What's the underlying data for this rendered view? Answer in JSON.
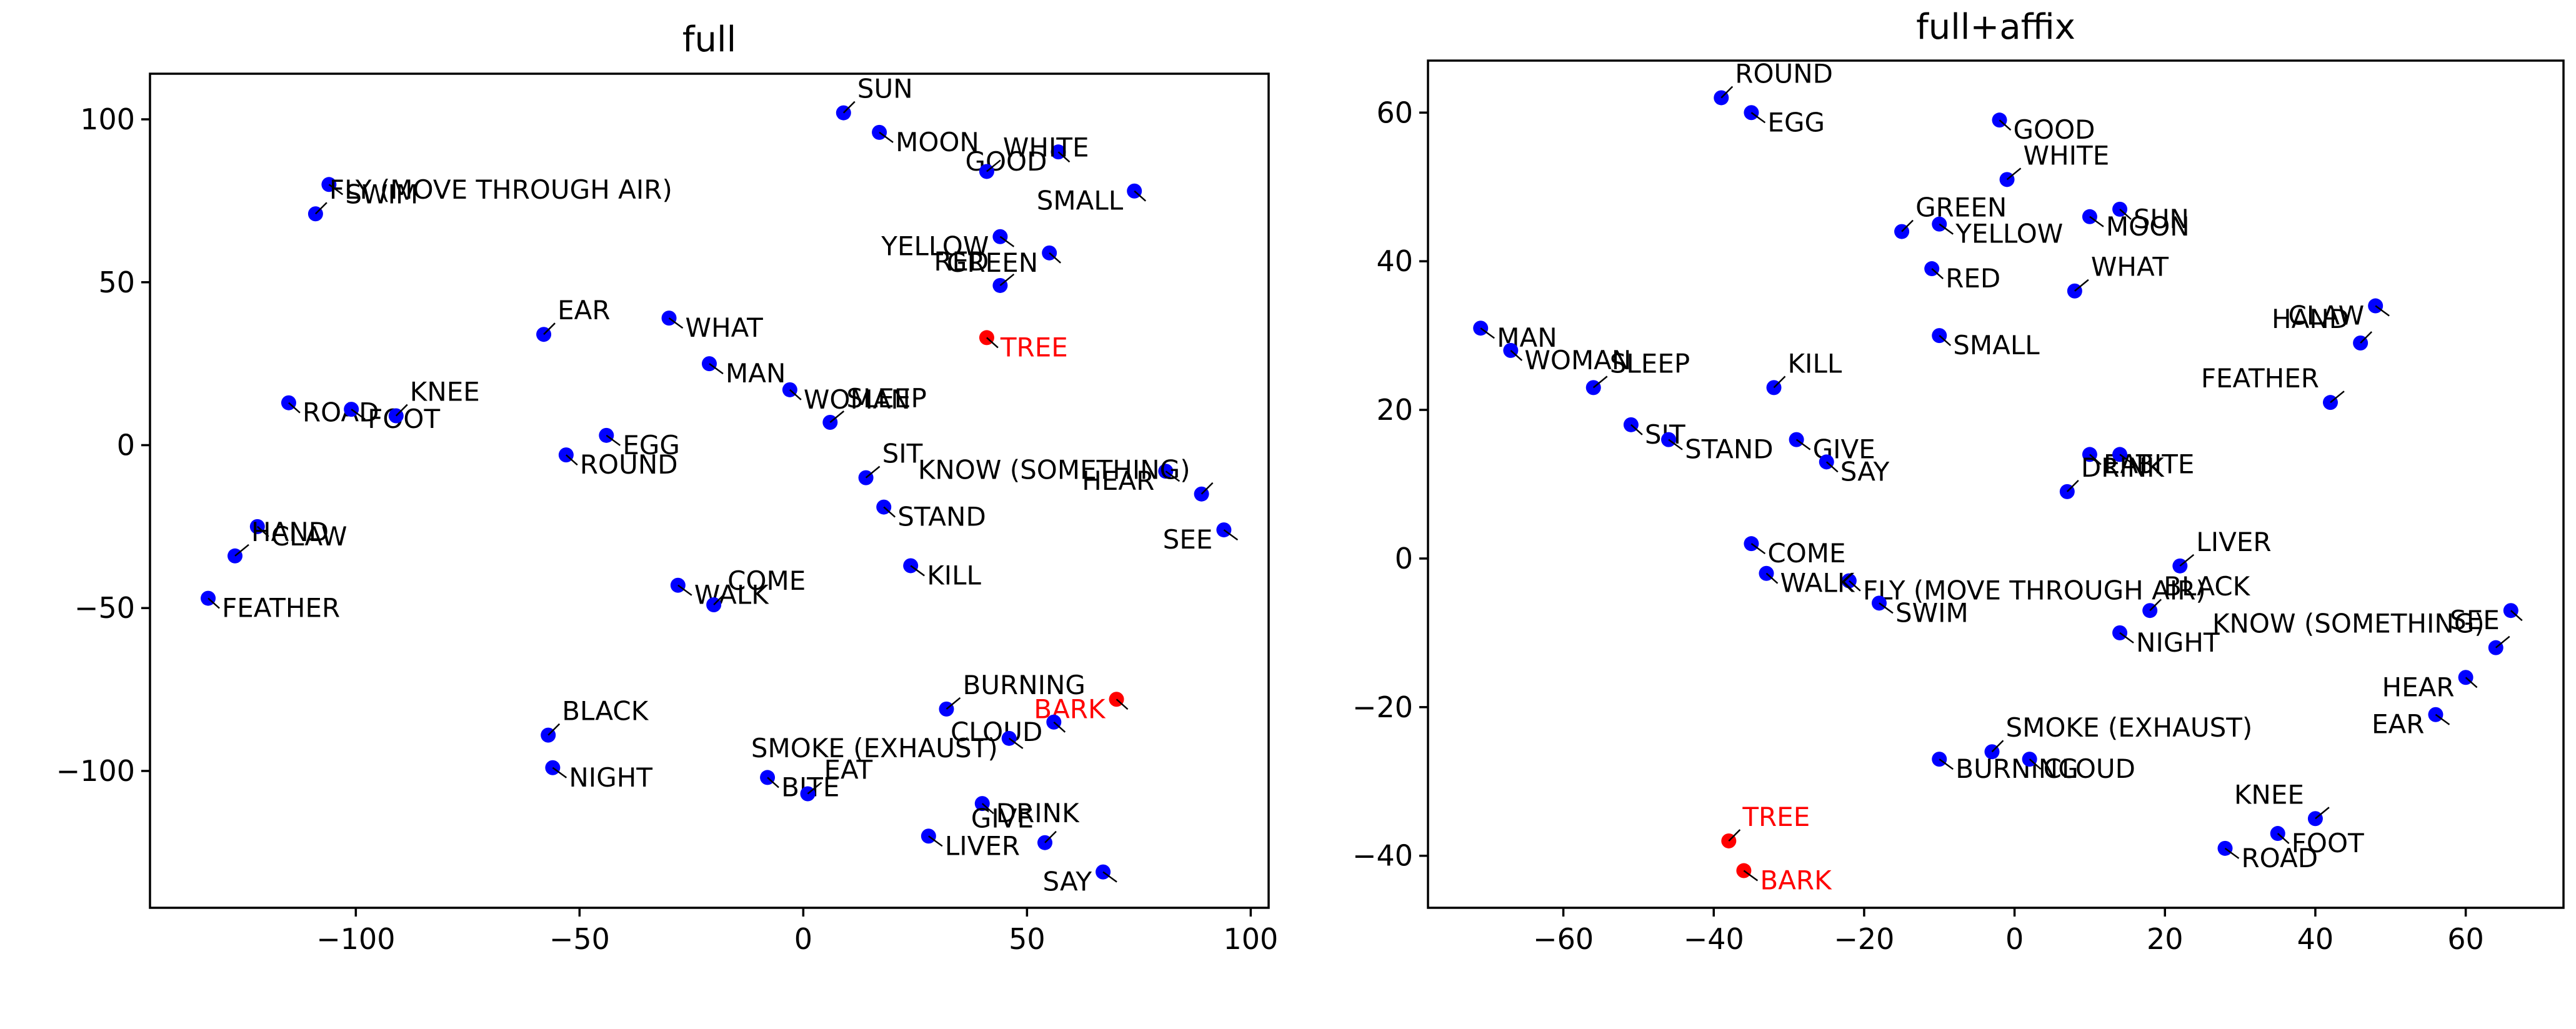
{
  "chart_data": [
    {
      "type": "scatter",
      "title": "full",
      "xlabel": "",
      "ylabel": "",
      "xlim": [
        -146,
        104
      ],
      "ylim": [
        -142,
        114
      ],
      "xticks": [
        -100,
        -50,
        0,
        50,
        100
      ],
      "yticks": [
        -100,
        -50,
        0,
        50,
        100
      ],
      "grid": false,
      "points": [
        {
          "label": "SUN",
          "x": 9,
          "y": 102,
          "color": "#0000ff"
        },
        {
          "label": "MOON",
          "x": 17,
          "y": 96,
          "color": "#0000ff"
        },
        {
          "label": "GOOD",
          "x": 57,
          "y": 90,
          "color": "#0000ff"
        },
        {
          "label": "WHITE",
          "x": 41,
          "y": 84,
          "color": "#0000ff"
        },
        {
          "label": "SMALL",
          "x": 74,
          "y": 78,
          "color": "#0000ff"
        },
        {
          "label": "SWIM",
          "x": -106,
          "y": 80,
          "color": "#0000ff"
        },
        {
          "label": "FLY (MOVE THROUGH AIR)",
          "x": -109,
          "y": 71,
          "color": "#0000ff"
        },
        {
          "label": "YELLOW",
          "x": 44,
          "y": 64,
          "color": "#0000ff"
        },
        {
          "label": "GREEN",
          "x": 55,
          "y": 59,
          "color": "#0000ff"
        },
        {
          "label": "RED",
          "x": 44,
          "y": 49,
          "color": "#0000ff"
        },
        {
          "label": "TREE",
          "x": 41,
          "y": 33,
          "color": "#ff0000"
        },
        {
          "label": "WHAT",
          "x": -30,
          "y": 39,
          "color": "#0000ff"
        },
        {
          "label": "EAR",
          "x": -58,
          "y": 34,
          "color": "#0000ff"
        },
        {
          "label": "MAN",
          "x": -21,
          "y": 25,
          "color": "#0000ff"
        },
        {
          "label": "WOMAN",
          "x": -3,
          "y": 17,
          "color": "#0000ff"
        },
        {
          "label": "SLEEP",
          "x": 6,
          "y": 7,
          "color": "#0000ff"
        },
        {
          "label": "ROAD",
          "x": -115,
          "y": 13,
          "color": "#0000ff"
        },
        {
          "label": "FOOT",
          "x": -101,
          "y": 11,
          "color": "#0000ff"
        },
        {
          "label": "KNEE",
          "x": -91,
          "y": 9,
          "color": "#0000ff"
        },
        {
          "label": "EGG",
          "x": -44,
          "y": 3,
          "color": "#0000ff"
        },
        {
          "label": "ROUND",
          "x": -53,
          "y": -3,
          "color": "#0000ff"
        },
        {
          "label": "SIT",
          "x": 14,
          "y": -10,
          "color": "#0000ff"
        },
        {
          "label": "STAND",
          "x": 18,
          "y": -19,
          "color": "#0000ff"
        },
        {
          "label": "HEAR",
          "x": 81,
          "y": -8,
          "color": "#0000ff"
        },
        {
          "label": "KNOW (SOMETHING)",
          "x": 89,
          "y": -15,
          "color": "#0000ff"
        },
        {
          "label": "SEE",
          "x": 94,
          "y": -26,
          "color": "#0000ff"
        },
        {
          "label": "CLAW",
          "x": -122,
          "y": -25,
          "color": "#0000ff"
        },
        {
          "label": "HAND",
          "x": -127,
          "y": -34,
          "color": "#0000ff"
        },
        {
          "label": "FEATHER",
          "x": -133,
          "y": -47,
          "color": "#0000ff"
        },
        {
          "label": "WALK",
          "x": -28,
          "y": -43,
          "color": "#0000ff"
        },
        {
          "label": "COME",
          "x": -20,
          "y": -49,
          "color": "#0000ff"
        },
        {
          "label": "KILL",
          "x": 24,
          "y": -37,
          "color": "#0000ff"
        },
        {
          "label": "BARK",
          "x": 70,
          "y": -78,
          "color": "#ff0000"
        },
        {
          "label": "BURNING",
          "x": 32,
          "y": -81,
          "color": "#0000ff"
        },
        {
          "label": "CLOUD",
          "x": 56,
          "y": -85,
          "color": "#0000ff"
        },
        {
          "label": "SMOKE (EXHAUST)",
          "x": 46,
          "y": -90,
          "color": "#0000ff"
        },
        {
          "label": "BLACK",
          "x": -57,
          "y": -89,
          "color": "#0000ff"
        },
        {
          "label": "NIGHT",
          "x": -56,
          "y": -99,
          "color": "#0000ff"
        },
        {
          "label": "BITE",
          "x": -8,
          "y": -102,
          "color": "#0000ff"
        },
        {
          "label": "EAT",
          "x": 1,
          "y": -107,
          "color": "#0000ff"
        },
        {
          "label": "DRINK",
          "x": 40,
          "y": -110,
          "color": "#0000ff"
        },
        {
          "label": "LIVER",
          "x": 28,
          "y": -120,
          "color": "#0000ff"
        },
        {
          "label": "GIVE",
          "x": 54,
          "y": -122,
          "color": "#0000ff"
        },
        {
          "label": "SAY",
          "x": 67,
          "y": -131,
          "color": "#0000ff"
        }
      ]
    },
    {
      "type": "scatter",
      "title": "full+affix",
      "xlabel": "",
      "ylabel": "",
      "xlim": [
        -78,
        73
      ],
      "ylim": [
        -47,
        67
      ],
      "xticks": [
        -60,
        -40,
        -20,
        0,
        20,
        40,
        60
      ],
      "yticks": [
        -40,
        -20,
        0,
        20,
        40,
        60
      ],
      "grid": false,
      "points": [
        {
          "label": "ROUND",
          "x": -39,
          "y": 62,
          "color": "#0000ff"
        },
        {
          "label": "EGG",
          "x": -35,
          "y": 60,
          "color": "#0000ff"
        },
        {
          "label": "GOOD",
          "x": -2,
          "y": 59,
          "color": "#0000ff"
        },
        {
          "label": "WHITE",
          "x": -1,
          "y": 51,
          "color": "#0000ff"
        },
        {
          "label": "SUN",
          "x": 14,
          "y": 47,
          "color": "#0000ff"
        },
        {
          "label": "MOON",
          "x": 10,
          "y": 46,
          "color": "#0000ff"
        },
        {
          "label": "GREEN",
          "x": -15,
          "y": 44,
          "color": "#0000ff"
        },
        {
          "label": "YELLOW",
          "x": -10,
          "y": 45,
          "color": "#0000ff"
        },
        {
          "label": "RED",
          "x": -11,
          "y": 39,
          "color": "#0000ff"
        },
        {
          "label": "WHAT",
          "x": 8,
          "y": 36,
          "color": "#0000ff"
        },
        {
          "label": "SMALL",
          "x": -10,
          "y": 30,
          "color": "#0000ff"
        },
        {
          "label": "CLAW",
          "x": 48,
          "y": 34,
          "color": "#0000ff"
        },
        {
          "label": "HAND",
          "x": 46,
          "y": 29,
          "color": "#0000ff"
        },
        {
          "label": "MAN",
          "x": -71,
          "y": 31,
          "color": "#0000ff"
        },
        {
          "label": "WOMAN",
          "x": -67,
          "y": 28,
          "color": "#0000ff"
        },
        {
          "label": "SLEEP",
          "x": -56,
          "y": 23,
          "color": "#0000ff"
        },
        {
          "label": "SIT",
          "x": -51,
          "y": 18,
          "color": "#0000ff"
        },
        {
          "label": "STAND",
          "x": -46,
          "y": 16,
          "color": "#0000ff"
        },
        {
          "label": "KILL",
          "x": -32,
          "y": 23,
          "color": "#0000ff"
        },
        {
          "label": "GIVE",
          "x": -29,
          "y": 16,
          "color": "#0000ff"
        },
        {
          "label": "SAY",
          "x": -25,
          "y": 13,
          "color": "#0000ff"
        },
        {
          "label": "FEATHER",
          "x": 42,
          "y": 21,
          "color": "#0000ff"
        },
        {
          "label": "EAT",
          "x": 10,
          "y": 14,
          "color": "#0000ff"
        },
        {
          "label": "BITE",
          "x": 14,
          "y": 14,
          "color": "#0000ff"
        },
        {
          "label": "DRINK",
          "x": 7,
          "y": 9,
          "color": "#0000ff"
        },
        {
          "label": "COME",
          "x": -35,
          "y": 2,
          "color": "#0000ff"
        },
        {
          "label": "FLY (MOVE THROUGH AIR)",
          "x": -22,
          "y": -3,
          "color": "#0000ff"
        },
        {
          "label": "LIVER",
          "x": 22,
          "y": -1,
          "color": "#0000ff"
        },
        {
          "label": "WALK",
          "x": -33,
          "y": -2,
          "color": "#0000ff"
        },
        {
          "label": "SWIM",
          "x": -18,
          "y": -6,
          "color": "#0000ff"
        },
        {
          "label": "BLACK",
          "x": 18,
          "y": -7,
          "color": "#0000ff"
        },
        {
          "label": "NIGHT",
          "x": 14,
          "y": -10,
          "color": "#0000ff"
        },
        {
          "label": "SEE",
          "x": 66,
          "y": -7,
          "color": "#0000ff"
        },
        {
          "label": "KNOW (SOMETHING)",
          "x": 64,
          "y": -12,
          "color": "#0000ff"
        },
        {
          "label": "HEAR",
          "x": 60,
          "y": -16,
          "color": "#0000ff"
        },
        {
          "label": "EAR",
          "x": 56,
          "y": -21,
          "color": "#0000ff"
        },
        {
          "label": "SMOKE (EXHAUST)",
          "x": -3,
          "y": -26,
          "color": "#0000ff"
        },
        {
          "label": "BURNING",
          "x": -10,
          "y": -27,
          "color": "#0000ff"
        },
        {
          "label": "CLOUD",
          "x": 2,
          "y": -27,
          "color": "#0000ff"
        },
        {
          "label": "KNEE",
          "x": 40,
          "y": -35,
          "color": "#0000ff"
        },
        {
          "label": "FOOT",
          "x": 35,
          "y": -37,
          "color": "#0000ff"
        },
        {
          "label": "ROAD",
          "x": 28,
          "y": -39,
          "color": "#0000ff"
        },
        {
          "label": "TREE",
          "x": -38,
          "y": -38,
          "color": "#ff0000"
        },
        {
          "label": "BARK",
          "x": -36,
          "y": -42,
          "color": "#ff0000"
        }
      ]
    }
  ]
}
